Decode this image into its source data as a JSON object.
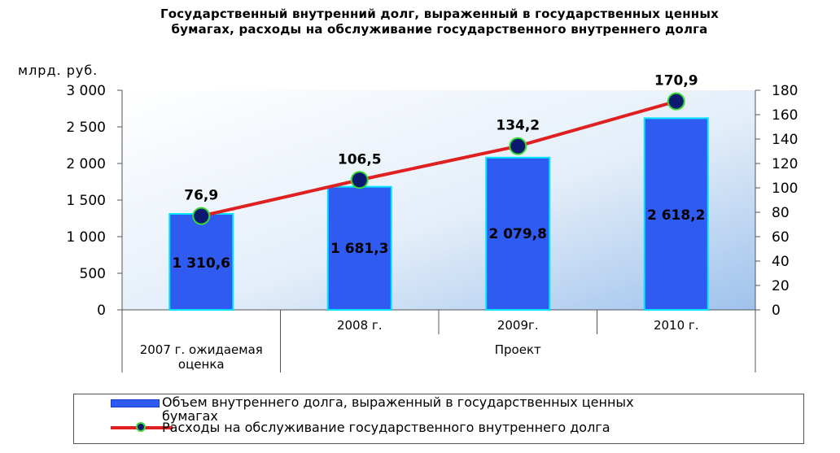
{
  "title": {
    "line1": "Государственный внутренний долг, выраженный в государственных ценных",
    "line2": "бумагах,  расходы на  обслуживание государственного внутреннего долга"
  },
  "chart_data": {
    "type": "bar",
    "unit_label": "млрд. руб.",
    "categories": [
      "2007 г. ожидаемая оценка",
      "2008 г.",
      "2009г.",
      "2010 г."
    ],
    "group_label": "Проект",
    "left_axis": {
      "ylim": [
        0,
        3000
      ],
      "ticks": [
        "0",
        "500",
        "1 000",
        "1 500",
        "2 000",
        "2 500",
        "3 000"
      ],
      "tick_values": [
        0,
        500,
        1000,
        1500,
        2000,
        2500,
        3000
      ]
    },
    "right_axis": {
      "ylim": [
        0,
        180
      ],
      "ticks": [
        "0",
        "20",
        "40",
        "60",
        "80",
        "100",
        "120",
        "140",
        "160",
        "180"
      ],
      "tick_values": [
        0,
        20,
        40,
        60,
        80,
        100,
        120,
        140,
        160,
        180
      ]
    },
    "series": [
      {
        "name": "Объем  внутреннего долга, выраженный в государственных ценных бумагах",
        "type": "bar",
        "axis": "left",
        "values": [
          1310.6,
          1681.3,
          2079.8,
          2618.2
        ],
        "labels": [
          "1 310,6",
          "1 681,3",
          "2 079,8",
          "2 618,2"
        ]
      },
      {
        "name": "Расходы на обслуживание государственного внутреннего долга",
        "type": "line",
        "axis": "right",
        "values": [
          76.9,
          106.5,
          134.2,
          170.9
        ],
        "labels": [
          "76,9",
          "106,5",
          "134,2",
          "170,9"
        ]
      }
    ],
    "colors": {
      "bar": "#2f5bf0",
      "bar_edge": "#00e5ff",
      "line": "#e02020",
      "marker": "#0b1a6e",
      "marker_edge": "#38d838"
    },
    "grid": false,
    "legend": "bottom"
  },
  "legend": {
    "bar_label_line1": "Объем  внутреннего долга, выраженный в государственных ценных",
    "bar_label_line2": "бумагах",
    "line_label": "Расходы на обслуживание государственного внутреннего долга"
  }
}
